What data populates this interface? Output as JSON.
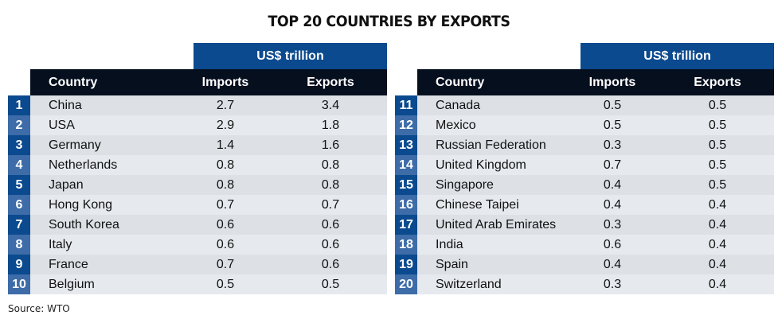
{
  "title": "TOP 20 COUNTRIES BY EXPORTS",
  "source": "Source: WTO",
  "unit_label": "US$ trillion",
  "headers": {
    "country": "Country",
    "imports": "Imports",
    "exports": "Exports"
  },
  "colors": {
    "band": "#0b4a8e",
    "header": "#050f1e",
    "rank_dark": "#0b4a8e",
    "rank_light": "#3d6ca8"
  },
  "chart_data": {
    "type": "table",
    "title": "TOP 20 COUNTRIES BY EXPORTS",
    "unit": "US$ trillion",
    "columns": [
      "Country",
      "Imports",
      "Exports"
    ],
    "left": [
      {
        "rank": "1",
        "country": "China",
        "imports": "2.7",
        "exports": "3.4"
      },
      {
        "rank": "2",
        "country": "USA",
        "imports": "2.9",
        "exports": "1.8"
      },
      {
        "rank": "3",
        "country": "Germany",
        "imports": "1.4",
        "exports": "1.6"
      },
      {
        "rank": "4",
        "country": "Netherlands",
        "imports": "0.8",
        "exports": "0.8"
      },
      {
        "rank": "5",
        "country": "Japan",
        "imports": "0.8",
        "exports": "0.8"
      },
      {
        "rank": "6",
        "country": "Hong Kong",
        "imports": "0.7",
        "exports": "0.7"
      },
      {
        "rank": "7",
        "country": "South Korea",
        "imports": "0.6",
        "exports": "0.6"
      },
      {
        "rank": "8",
        "country": "Italy",
        "imports": "0.6",
        "exports": "0.6"
      },
      {
        "rank": "9",
        "country": "France",
        "imports": "0.7",
        "exports": "0.6"
      },
      {
        "rank": "10",
        "country": "Belgium",
        "imports": "0.5",
        "exports": "0.5"
      }
    ],
    "right": [
      {
        "rank": "11",
        "country": "Canada",
        "imports": "0.5",
        "exports": "0.5"
      },
      {
        "rank": "12",
        "country": "Mexico",
        "imports": "0.5",
        "exports": "0.5"
      },
      {
        "rank": "13",
        "country": "Russian Federation",
        "imports": "0.3",
        "exports": "0.5"
      },
      {
        "rank": "14",
        "country": "United Kingdom",
        "imports": "0.7",
        "exports": "0.5"
      },
      {
        "rank": "15",
        "country": "Singapore",
        "imports": "0.4",
        "exports": "0.5"
      },
      {
        "rank": "16",
        "country": "Chinese Taipei",
        "imports": "0.4",
        "exports": "0.4"
      },
      {
        "rank": "17",
        "country": "United Arab Emirates",
        "imports": "0.3",
        "exports": "0.4"
      },
      {
        "rank": "18",
        "country": "India",
        "imports": "0.6",
        "exports": "0.4"
      },
      {
        "rank": "19",
        "country": "Spain",
        "imports": "0.4",
        "exports": "0.4"
      },
      {
        "rank": "20",
        "country": "Switzerland",
        "imports": "0.3",
        "exports": "0.4"
      }
    ]
  }
}
